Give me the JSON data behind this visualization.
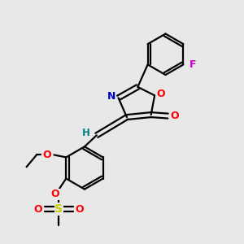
{
  "background_color": "#e8e8e8",
  "line_color": "#000000",
  "bond_width": 1.6,
  "colors": {
    "N": "#0000cc",
    "O": "#ff0000",
    "F": "#cc00cc",
    "H": "#008080",
    "S": "#cccc00",
    "C": "#000000"
  }
}
